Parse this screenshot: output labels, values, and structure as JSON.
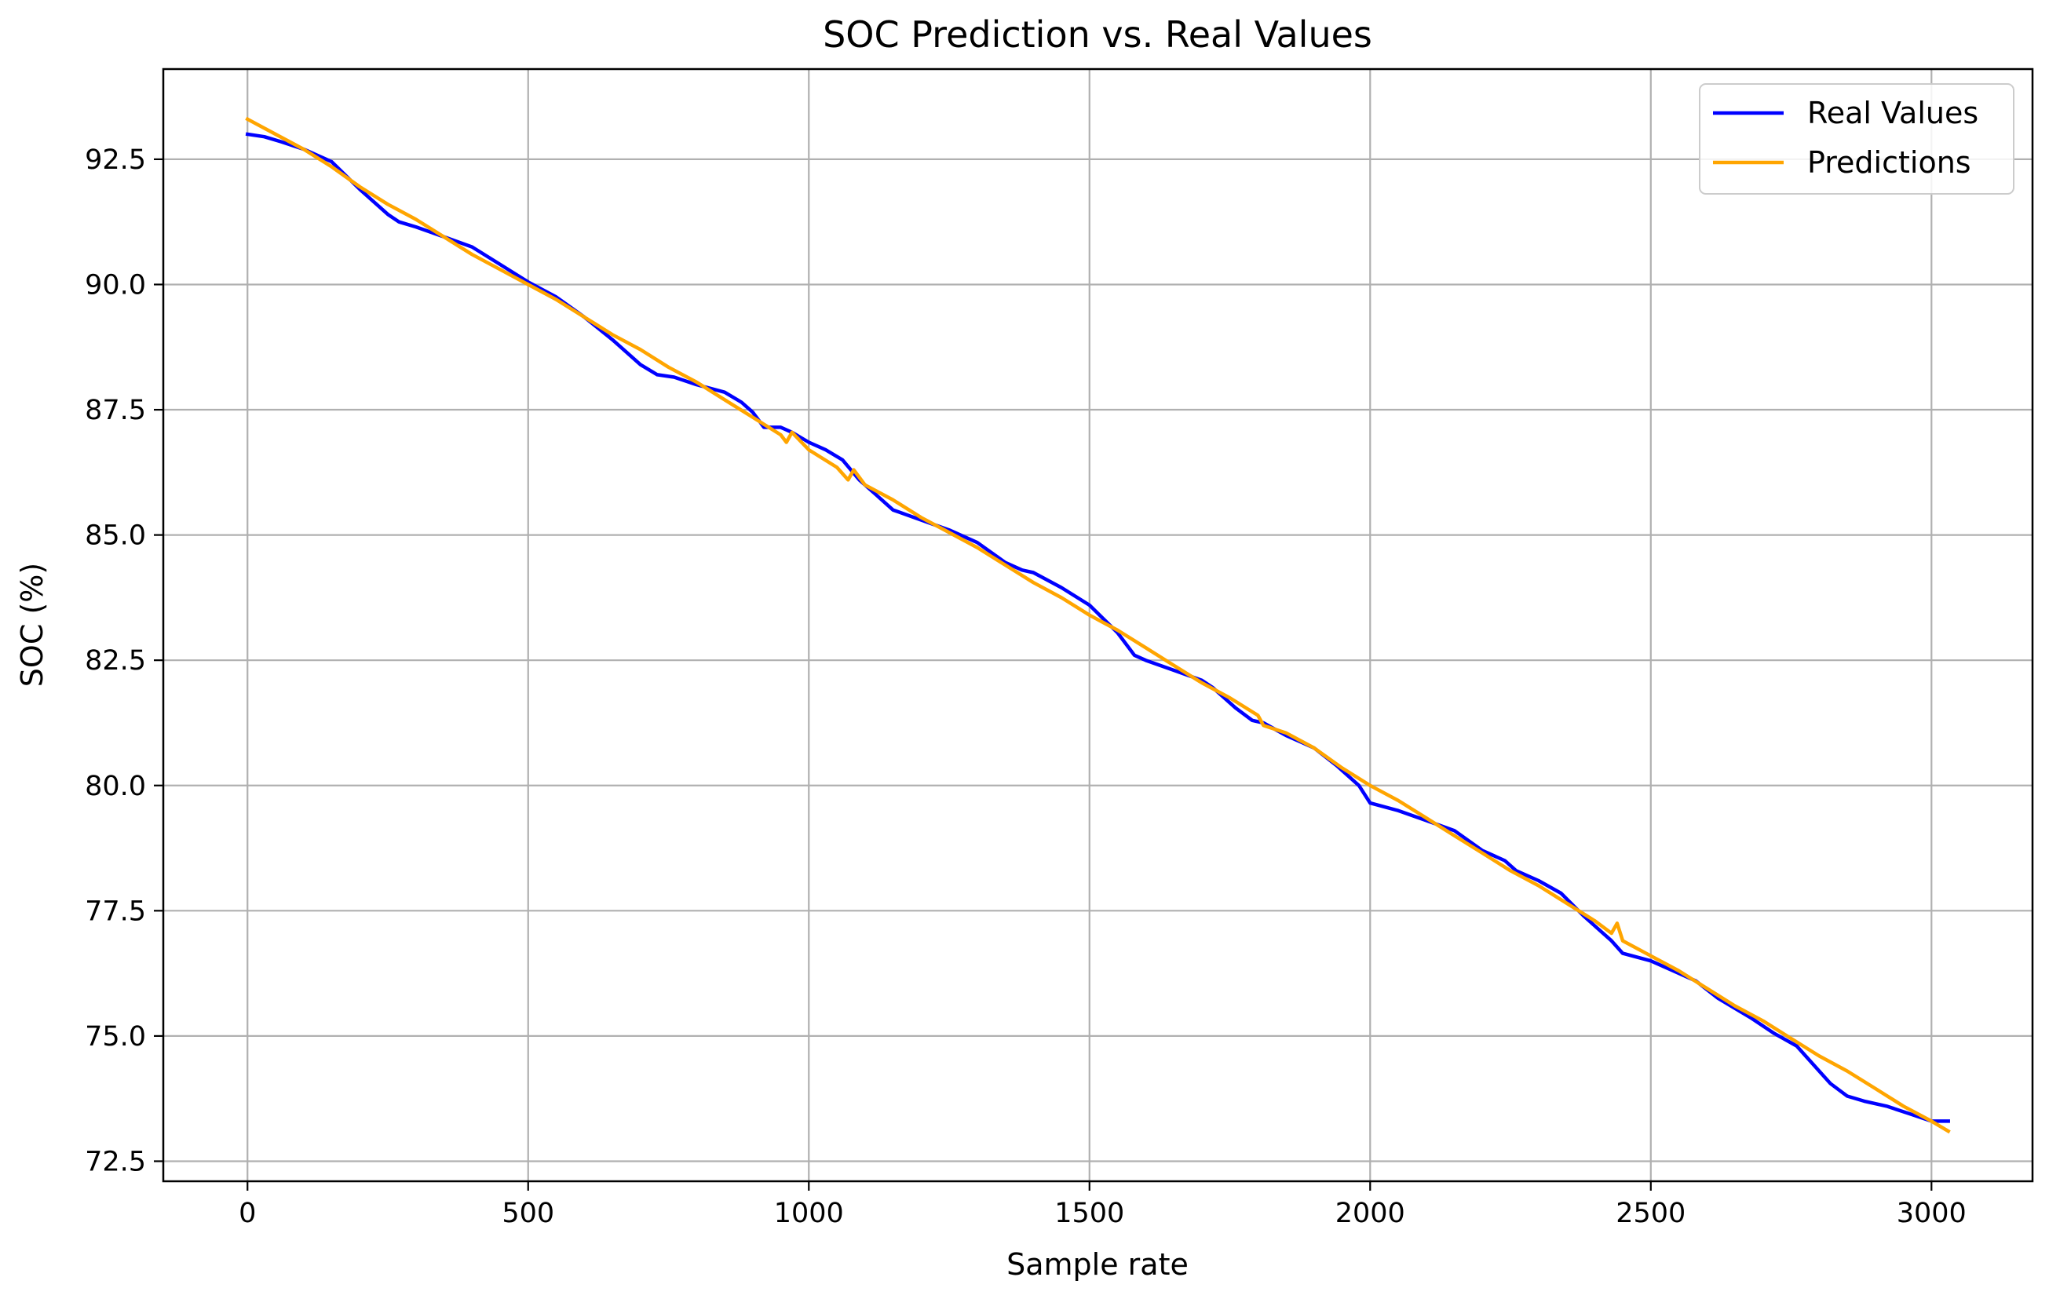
{
  "chart_data": {
    "type": "line",
    "title": "SOC Prediction vs. Real Values",
    "xlabel": "Sample rate",
    "ylabel": "SOC (%)",
    "xlim": [
      -150,
      3180
    ],
    "ylim": [
      72.1,
      94.3
    ],
    "xticks": [
      0,
      500,
      1000,
      1500,
      2000,
      2500,
      3000
    ],
    "yticks": [
      72.5,
      75.0,
      77.5,
      80.0,
      82.5,
      85.0,
      87.5,
      90.0,
      92.5
    ],
    "grid": true,
    "legend_position": "top-right",
    "series": [
      {
        "name": "Real Values",
        "color": "#0000ff",
        "x": [
          0,
          30,
          60,
          100,
          150,
          200,
          250,
          270,
          300,
          350,
          400,
          450,
          500,
          550,
          600,
          650,
          700,
          730,
          760,
          800,
          850,
          880,
          900,
          920,
          950,
          970,
          1000,
          1030,
          1060,
          1090,
          1120,
          1150,
          1200,
          1250,
          1300,
          1350,
          1380,
          1400,
          1450,
          1500,
          1550,
          1580,
          1600,
          1650,
          1700,
          1720,
          1760,
          1790,
          1810,
          1850,
          1880,
          1900,
          1940,
          1980,
          2000,
          2050,
          2100,
          2150,
          2200,
          2240,
          2260,
          2300,
          2340,
          2380,
          2400,
          2430,
          2450,
          2500,
          2550,
          2580,
          2620,
          2680,
          2720,
          2760,
          2800,
          2820,
          2850,
          2880,
          2920,
          2960,
          3000,
          3030
        ],
        "values": [
          93.0,
          92.95,
          92.85,
          92.7,
          92.45,
          91.9,
          91.4,
          91.25,
          91.15,
          90.95,
          90.75,
          90.4,
          90.05,
          89.75,
          89.35,
          88.9,
          88.4,
          88.2,
          88.15,
          88.0,
          87.85,
          87.65,
          87.45,
          87.15,
          87.15,
          87.05,
          86.85,
          86.7,
          86.5,
          86.1,
          85.8,
          85.5,
          85.3,
          85.1,
          84.85,
          84.45,
          84.3,
          84.25,
          83.95,
          83.6,
          83.05,
          82.6,
          82.5,
          82.3,
          82.1,
          81.95,
          81.55,
          81.3,
          81.25,
          81.0,
          80.85,
          80.75,
          80.4,
          80.0,
          79.65,
          79.5,
          79.3,
          79.1,
          78.7,
          78.5,
          78.3,
          78.1,
          77.85,
          77.4,
          77.2,
          76.9,
          76.65,
          76.5,
          76.25,
          76.1,
          75.75,
          75.35,
          75.05,
          74.8,
          74.3,
          74.05,
          73.8,
          73.7,
          73.6,
          73.45,
          73.3,
          73.3
        ]
      },
      {
        "name": "Predictions",
        "color": "#ffa500",
        "x": [
          0,
          50,
          100,
          150,
          200,
          250,
          300,
          350,
          400,
          450,
          500,
          550,
          600,
          650,
          700,
          750,
          800,
          850,
          900,
          950,
          960,
          970,
          1000,
          1050,
          1070,
          1080,
          1100,
          1150,
          1200,
          1250,
          1300,
          1350,
          1400,
          1450,
          1500,
          1550,
          1600,
          1650,
          1700,
          1750,
          1800,
          1810,
          1850,
          1900,
          1950,
          2000,
          2050,
          2100,
          2150,
          2200,
          2250,
          2300,
          2350,
          2400,
          2430,
          2440,
          2450,
          2500,
          2550,
          2600,
          2650,
          2700,
          2750,
          2800,
          2850,
          2900,
          2950,
          3000,
          3030
        ],
        "values": [
          93.3,
          93.0,
          92.7,
          92.35,
          91.95,
          91.6,
          91.3,
          90.95,
          90.6,
          90.3,
          90.0,
          89.7,
          89.35,
          89.0,
          88.7,
          88.35,
          88.05,
          87.7,
          87.35,
          87.0,
          86.85,
          87.05,
          86.7,
          86.35,
          86.1,
          86.3,
          86.0,
          85.7,
          85.35,
          85.05,
          84.75,
          84.4,
          84.05,
          83.75,
          83.4,
          83.1,
          82.75,
          82.4,
          82.05,
          81.75,
          81.4,
          81.2,
          81.05,
          80.75,
          80.35,
          80.0,
          79.7,
          79.35,
          79.0,
          78.65,
          78.3,
          78.0,
          77.65,
          77.3,
          77.05,
          77.25,
          76.9,
          76.6,
          76.3,
          75.95,
          75.6,
          75.3,
          74.95,
          74.6,
          74.3,
          73.95,
          73.6,
          73.3,
          73.1
        ]
      }
    ]
  }
}
